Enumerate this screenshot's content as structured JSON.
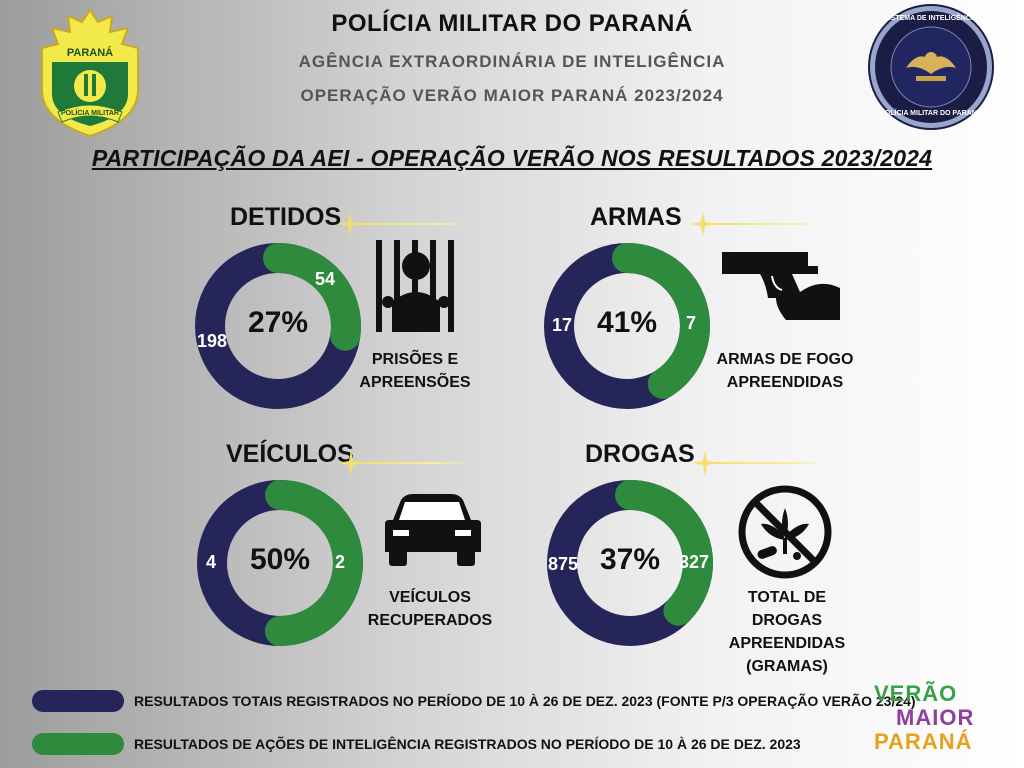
{
  "header": {
    "title": "POLÍCIA MILITAR DO PARANÁ",
    "subtitle1": "AGÊNCIA EXTRAORDINÁRIA DE INTELIGÊNCIA",
    "subtitle2": "OPERAÇÃO VERÃO MAIOR PARANÁ 2023/2024",
    "left_logo_text": "PARANÁ",
    "left_logo_band": "POLÍCIA MILITAR",
    "right_seal_top": "SISTEMA DE INTELIGÊNCIA",
    "right_seal_bottom": "POLÍCIA MILITAR DO PARANÁ"
  },
  "section_title": "PARTICIPAÇÃO DA AEI - OPERAÇÃO VERÃO NOS RESULTADOS 2023/2024",
  "colors": {
    "total": "#26255a",
    "intel": "#2e8b3e",
    "star": "#f3e06a"
  },
  "chart_data": [
    {
      "type": "pie",
      "title": "DETIDOS",
      "percent_label": "27%",
      "total_label": "198",
      "intel_label": "54",
      "total": 198,
      "intel": 54,
      "caption": [
        "PRISÕES E",
        "APREENSÕES"
      ],
      "icon": "prison-bars-icon"
    },
    {
      "type": "pie",
      "title": "ARMAS",
      "percent_label": "41%",
      "total_label": "17",
      "intel_label": "7",
      "total": 17,
      "intel": 7,
      "caption": [
        "ARMAS DE FOGO",
        "APREENDIDAS"
      ],
      "icon": "handgun-icon"
    },
    {
      "type": "pie",
      "title": "VEÍCULOS",
      "percent_label": "50%",
      "total_label": "4",
      "intel_label": "2",
      "total": 4,
      "intel": 2,
      "caption": [
        "VEÍCULOS",
        "RECUPERADOS"
      ],
      "icon": "car-icon"
    },
    {
      "type": "pie",
      "title": "DROGAS",
      "percent_label": "37%",
      "total_label": "875",
      "intel_label": "327",
      "total": 875,
      "intel": 327,
      "caption": [
        "TOTAL DE DROGAS",
        "APREENDIDAS",
        "(GRAMAS)"
      ],
      "icon": "no-drugs-icon"
    }
  ],
  "legend": {
    "total_text": "RESULTADOS TOTAIS REGISTRADOS NO PERÍODO DE 10 À 26 DE DEZ. 2023 (FONTE P/3 OPERAÇÃO VERÃO 23/24)",
    "intel_text": "RESULTADOS DE AÇÕES DE INTELIGÊNCIA REGISTRADOS NO PERÍODO DE 10 À 26 DE DEZ. 2023"
  },
  "brand_logo": {
    "line1": "VERÃO",
    "line2": "MAIOR",
    "line3": "PARANÁ"
  }
}
